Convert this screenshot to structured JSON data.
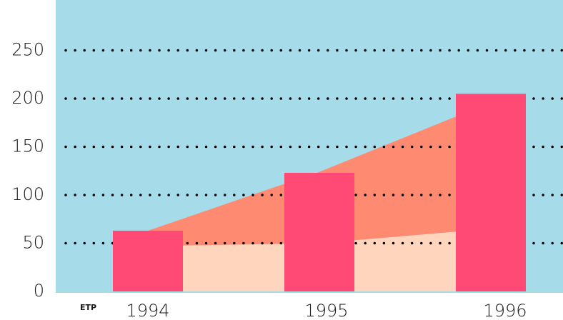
{
  "chart_data": {
    "type": "bar",
    "categories": [
      "1994",
      "1995",
      "1996"
    ],
    "series": [
      {
        "type": "area",
        "stack": true,
        "color": "#ffd6bd",
        "values": [
          47,
          50,
          65
        ]
      },
      {
        "type": "area",
        "stack": true,
        "color": "#ff8a72",
        "values": [
          16,
          74,
          131
        ]
      },
      {
        "type": "bar",
        "color": "#ff4a76",
        "values": [
          63,
          123,
          205
        ]
      }
    ],
    "ylim": [
      0,
      300
    ],
    "yticks": [
      0,
      50,
      100,
      150,
      200,
      250
    ],
    "grid": true,
    "background": "#a6dcea",
    "annotation": "ETP"
  }
}
